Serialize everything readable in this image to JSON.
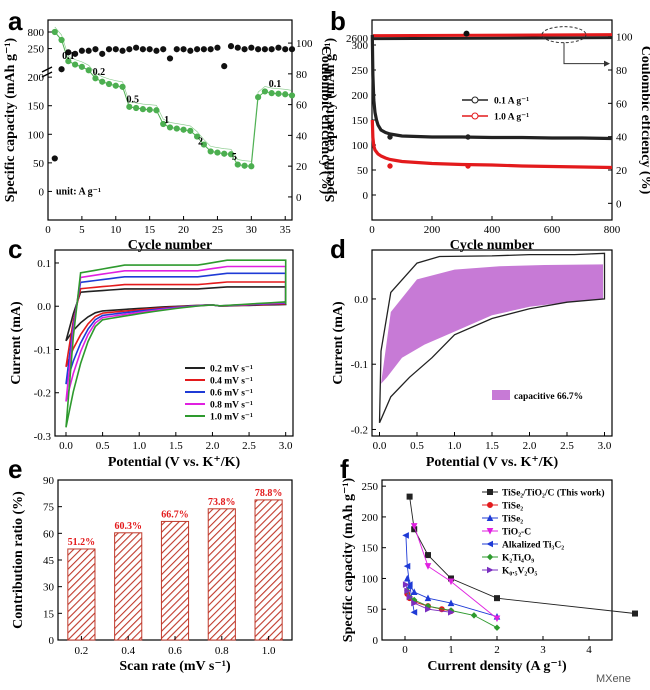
{
  "panel_labels": {
    "a": "a",
    "b": "b",
    "c": "c",
    "d": "d",
    "e": "e",
    "f": "f"
  },
  "watermark": "MXene",
  "colors": {
    "green": "#4caf50",
    "red": "#e31a1c",
    "black": "#222222",
    "blue": "#1f3bd6",
    "magenta": "#e020e0",
    "darkgreen": "#2e9a2e",
    "purple": "#a13dd6",
    "hatch": "#c0392b",
    "fill_d": "#c77ad6"
  },
  "chart_data": [
    {
      "id": "a",
      "type": "scatter",
      "xlabel": "Cycle number",
      "ylabel": "Specific capacity (mAh g⁻¹)",
      "y2label": "Coulombic effciency (%)",
      "xlim": [
        0,
        36
      ],
      "ylim": [
        -50,
        300
      ],
      "y2lim": [
        -15,
        115
      ],
      "xticks": [
        "0",
        "5",
        "10",
        "15",
        "20",
        "25",
        "30",
        "35"
      ],
      "yticks": [
        "0",
        "50",
        "100",
        "150",
        "200",
        "250"
      ],
      "ybreak_tick": "800",
      "y2ticks": [
        "0",
        "20",
        "40",
        "60",
        "80",
        "100"
      ],
      "capacity_x": [
        1,
        2,
        3,
        4,
        5,
        6,
        7,
        8,
        9,
        10,
        11,
        12,
        13,
        14,
        15,
        16,
        17,
        18,
        19,
        20,
        21,
        22,
        23,
        24,
        25,
        26,
        27,
        28,
        29,
        30,
        31,
        32,
        33,
        34,
        35,
        36
      ],
      "capacity_y": [
        800,
        265,
        228,
        222,
        218,
        212,
        198,
        192,
        188,
        185,
        183,
        148,
        146,
        144,
        143,
        142,
        118,
        112,
        110,
        108,
        106,
        96,
        82,
        70,
        68,
        66,
        65,
        47,
        45,
        44,
        165,
        175,
        172,
        171,
        170,
        168
      ],
      "efficiency_x": [
        1,
        2,
        3,
        4,
        5,
        6,
        7,
        8,
        9,
        10,
        11,
        12,
        13,
        14,
        15,
        16,
        17,
        18,
        19,
        20,
        21,
        22,
        23,
        24,
        25,
        26,
        27,
        28,
        29,
        30,
        31,
        32,
        33,
        34,
        35,
        36
      ],
      "efficiency_y": [
        25,
        83,
        94,
        93,
        95,
        95,
        96,
        93,
        96,
        96,
        95,
        96,
        97,
        96,
        96,
        95,
        96,
        90,
        96,
        96,
        95,
        96,
        96,
        96,
        97,
        85,
        98,
        97,
        96,
        97,
        96,
        96,
        96,
        97,
        96,
        96
      ],
      "rate_labels": [
        "0.1",
        "0.2",
        "0.5",
        "1",
        "2",
        "5",
        "0.1"
      ],
      "unit_note": "unit: A g⁻¹"
    },
    {
      "id": "b",
      "type": "line",
      "xlabel": "Cycle number",
      "ylabel": "Specific capacity (mAh g⁻¹)",
      "y2label": "Coulombic effciency (%)",
      "xlim": [
        0,
        800
      ],
      "ylim": [
        -50,
        350
      ],
      "y2lim": [
        -10,
        110
      ],
      "xticks": [
        "0",
        "200",
        "400",
        "600",
        "800"
      ],
      "yticks": [
        "0",
        "50",
        "100",
        "150",
        "200",
        "250",
        "300"
      ],
      "ybreak_tick": "2600",
      "y2ticks": [
        "0",
        "20",
        "40",
        "60",
        "80",
        "100"
      ],
      "series": [
        {
          "name": "0.1 A g⁻¹",
          "color": "#222222",
          "x": [
            1,
            3,
            6,
            10,
            15,
            20,
            30,
            45,
            60,
            80,
            100,
            150,
            200,
            300,
            400,
            500,
            600,
            700,
            800
          ],
          "y": [
            320,
            240,
            190,
            165,
            150,
            140,
            130,
            125,
            122,
            120,
            118,
            117,
            116,
            116,
            115,
            115,
            114,
            114,
            113
          ]
        },
        {
          "name": "1.0 A g⁻¹",
          "color": "#e31a1c",
          "x": [
            1,
            3,
            6,
            10,
            15,
            20,
            30,
            45,
            60,
            80,
            100,
            150,
            200,
            300,
            400,
            500,
            600,
            700,
            800
          ],
          "y": [
            150,
            115,
            98,
            90,
            86,
            82,
            78,
            74,
            71,
            69,
            67,
            65,
            63,
            61,
            60,
            58,
            57,
            56,
            55
          ]
        }
      ],
      "efficiency_value": 100,
      "break_label": "2600"
    },
    {
      "id": "c",
      "type": "line",
      "xlabel": "Potential (V vs. K⁺/K)",
      "ylabel": "Current (mA)",
      "xlim": [
        -0.15,
        3.1
      ],
      "ylim": [
        -0.3,
        0.13
      ],
      "xticks": [
        "0.0",
        "0.5",
        "1.0",
        "1.5",
        "2.0",
        "2.5",
        "3.0"
      ],
      "yticks": [
        "-0.3",
        "-0.2",
        "-0.1",
        "0.0",
        "0.1"
      ],
      "series": [
        {
          "name": "0.2 mV s⁻¹",
          "color": "#222222",
          "upper": 0.04,
          "lower_start": -0.08
        },
        {
          "name": "0.4 mV s⁻¹",
          "color": "#e31a1c",
          "upper": 0.05,
          "lower_start": -0.14
        },
        {
          "name": "0.6 mV s⁻¹",
          "color": "#1f3bd6",
          "upper": 0.068,
          "lower_start": -0.18
        },
        {
          "name": "0.8 mV s⁻¹",
          "color": "#e020e0",
          "upper": 0.082,
          "lower_start": -0.22
        },
        {
          "name": "1.0 mV s⁻¹",
          "color": "#2e9a2e",
          "upper": 0.095,
          "lower_start": -0.28
        }
      ]
    },
    {
      "id": "d",
      "type": "area",
      "xlabel": "Potential (V vs. K⁺/K)",
      "ylabel": "Current (mA)",
      "xlim": [
        -0.1,
        3.1
      ],
      "ylim": [
        -0.21,
        0.075
      ],
      "xticks": [
        "0.0",
        "0.5",
        "1.0",
        "1.5",
        "2.0",
        "2.5",
        "3.0"
      ],
      "yticks": [
        "-0.2",
        "-0.1",
        "0.0"
      ],
      "legend": "capacitive 66.7%"
    },
    {
      "id": "e",
      "type": "bar",
      "xlabel": "Scan rate (mV s⁻¹)",
      "ylabel": "Contribution ratio (%)",
      "categories": [
        "0.2",
        "0.4",
        "0.6",
        "0.8",
        "1.0"
      ],
      "values": [
        51.2,
        60.3,
        66.7,
        73.8,
        78.8
      ],
      "labels": [
        "51.2%",
        "60.3%",
        "66.7%",
        "73.8%",
        "78.8%"
      ],
      "ylim": [
        0,
        90
      ],
      "yticks": [
        "0",
        "15",
        "30",
        "45",
        "60",
        "75",
        "90"
      ]
    },
    {
      "id": "f",
      "type": "line",
      "xlabel": "Current density (A g⁻¹)",
      "ylabel": "Specific capacity (mAh g⁻¹)",
      "xlim": [
        -0.5,
        4.5
      ],
      "ylim": [
        0,
        260
      ],
      "xticks": [
        "0",
        "1",
        "2",
        "3",
        "4"
      ],
      "yticks": [
        "0",
        "50",
        "100",
        "150",
        "200",
        "250"
      ],
      "series": [
        {
          "name": "TiSe₂/TiO₂/C (This work)",
          "color": "#222222",
          "marker": "square",
          "x": [
            0.1,
            0.2,
            0.5,
            1,
            2,
            5
          ],
          "y": [
            233,
            180,
            138,
            100,
            68,
            43
          ]
        },
        {
          "name": "TiSe₂",
          "color": "#e31a1c",
          "marker": "circle",
          "x": [
            0.05,
            0.1,
            0.2,
            0.5,
            0.8,
            1.0
          ],
          "y": [
            75,
            68,
            62,
            55,
            50,
            47
          ]
        },
        {
          "name": "TiSe₂",
          "color": "#1f3bd6",
          "marker": "triangle-up",
          "x": [
            0.05,
            0.1,
            0.2,
            0.5,
            1,
            2
          ],
          "y": [
            100,
            88,
            78,
            68,
            60,
            38
          ]
        },
        {
          "name": "TiO₂-C",
          "color": "#e020e0",
          "marker": "triangle-down",
          "x": [
            0.2,
            0.5,
            1,
            2
          ],
          "y": [
            185,
            120,
            95,
            35
          ]
        },
        {
          "name": "Alkalized Ti₃C₂",
          "color": "#1f3bd6",
          "marker": "triangle-left",
          "x": [
            0.02,
            0.05,
            0.1,
            0.2
          ],
          "y": [
            170,
            120,
            90,
            45
          ]
        },
        {
          "name": "K₂Ti₄O₉",
          "color": "#2e9a2e",
          "marker": "diamond",
          "x": [
            0.05,
            0.1,
            0.2,
            0.5,
            1,
            1.5,
            2
          ],
          "y": [
            80,
            70,
            65,
            55,
            48,
            40,
            20
          ]
        },
        {
          "name": "K₀.₅V₂O₅",
          "color": "#7a2fc0",
          "marker": "triangle-right",
          "x": [
            0.02,
            0.05,
            0.1,
            0.2,
            0.5,
            1
          ],
          "y": [
            90,
            80,
            70,
            60,
            50,
            45
          ]
        }
      ]
    }
  ]
}
